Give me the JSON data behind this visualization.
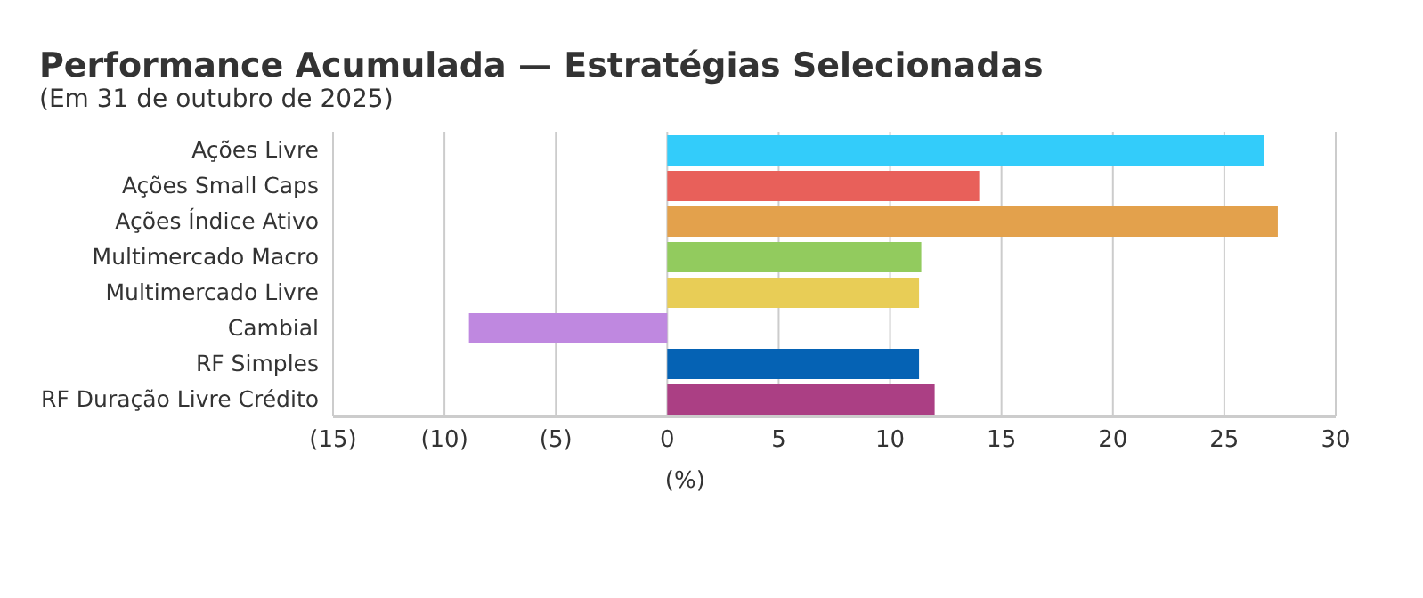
{
  "chart_data": {
    "type": "bar",
    "orientation": "horizontal",
    "title": "Performance Acumulada — Estratégias Selecionadas",
    "subtitle": "(Em 31 de outubro de 2025)",
    "xlabel": "(%)",
    "categories": [
      "Ações Livre",
      "Ações Small Caps",
      "Ações Índice Ativo",
      "Multimercado Macro",
      "Multimercado Livre",
      "Cambial",
      "RF Simples",
      "RF Duração Livre Crédito"
    ],
    "values": [
      26.8,
      14.0,
      27.4,
      11.4,
      11.3,
      -8.9,
      11.3,
      12.0
    ],
    "colors": [
      "#33ccfa",
      "#e8605a",
      "#e3a14c",
      "#92cb5e",
      "#e8cd56",
      "#bf88e0",
      "#0562b4",
      "#ab3f84"
    ],
    "xlim": [
      -15,
      30
    ],
    "xticks": [
      {
        "value": -15,
        "label": "(15)"
      },
      {
        "value": -10,
        "label": "(10)"
      },
      {
        "value": -5,
        "label": "(5)"
      },
      0,
      5,
      10,
      15,
      20,
      25,
      30
    ],
    "grid": "x",
    "legend": false
  }
}
